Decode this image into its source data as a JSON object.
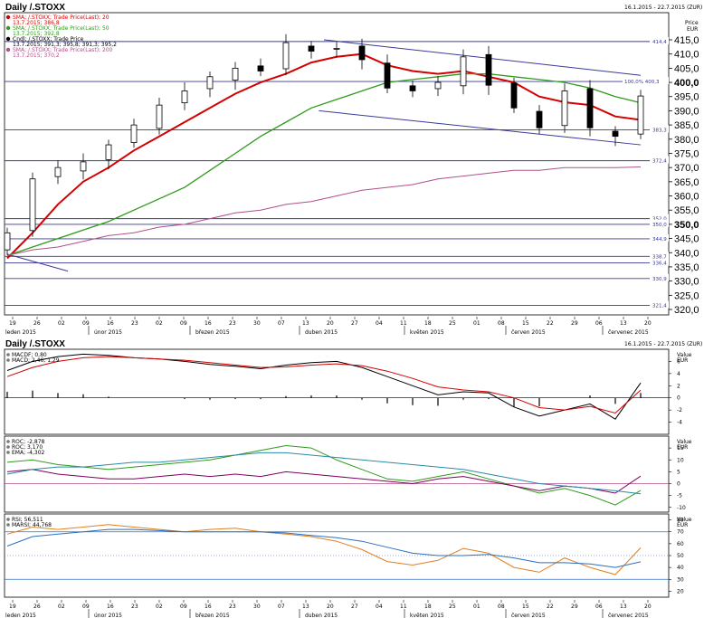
{
  "header": {
    "title": "Daily /.STOXX",
    "range": "16.1.2015 - 22.7.2015 (ZUR)",
    "price_label": "Price",
    "currency": "EUR",
    "subtitle": "Daily /.STOXX",
    "sub_range": "16.1.2015 - 22.7.2015 (ZUR)"
  },
  "legend": [
    {
      "text": "SMA; /.STOXX; Trade Price(Last); 20",
      "sub": "13.7.2015; 386,8",
      "color": "#d40000"
    },
    {
      "text": "SMA; /.STOXX; Trade Price(Last); 50",
      "sub": "13.7.2015; 392,8",
      "color": "#2f9a1c"
    },
    {
      "text": "Cndl; /.STOXX; Trade Price",
      "sub": "13.7.2015; 391,3; 395,8; 391,3; 395,2",
      "color": "#000000"
    },
    {
      "text": "SMA; /.STOXX; Trade Price(Last); 200",
      "sub": "13.7.2015; 370,2",
      "color": "#b0508a"
    }
  ],
  "price_axis": {
    "ticks": [
      "415,0",
      "410,0",
      "405,0",
      "400,0",
      "395,0",
      "390,0",
      "385,0",
      "380,0",
      "375,0",
      "370,0",
      "365,0",
      "360,0",
      "355,0",
      "350,0",
      "345,0",
      "340,0",
      "335,0",
      "330,0",
      "325,0",
      "320,0"
    ],
    "bold_ticks": [
      "400,0",
      "350,0"
    ]
  },
  "hlines": [
    {
      "label": "414,4",
      "value": 414.4
    },
    {
      "label": "100,0% 400,3",
      "value": 400.3
    },
    {
      "label": "383,3",
      "value": 383.3
    },
    {
      "label": "372,4",
      "value": 372.4
    },
    {
      "label": "352,0",
      "value": 352.0
    },
    {
      "label": "350,0",
      "value": 350.0
    },
    {
      "label": "344,9",
      "value": 344.9
    },
    {
      "label": "338,7",
      "value": 338.7
    },
    {
      "label": "336,4",
      "value": 336.4
    },
    {
      "label": "330,9",
      "value": 330.9
    },
    {
      "label": "321,4",
      "value": 321.4
    }
  ],
  "x_axis": {
    "day_ticks": [
      "19",
      "26",
      "02",
      "09",
      "16",
      "23",
      "02",
      "09",
      "16",
      "23",
      "30",
      "07",
      "13",
      "20",
      "27",
      "04",
      "11",
      "18",
      "25",
      "01",
      "08",
      "15",
      "22",
      "29",
      "06",
      "13",
      "20"
    ],
    "months": [
      "leden 2015",
      "únor 2015",
      "březen 2015",
      "duben 2015",
      "květen 2015",
      "červen 2015",
      "červenec 2015"
    ]
  },
  "macd_panel": {
    "legend": [
      "MACDF; 0,80",
      "MACD; 2,46; 1,29"
    ],
    "value_label": "Value",
    "currency": "EUR",
    "ticks": [
      "6",
      "4",
      "2",
      "0",
      "-2",
      "-4"
    ]
  },
  "roc_panel": {
    "legend": [
      "ROC; -2,878",
      "ROC; 3,170",
      "EMA; -4,302"
    ],
    "value_label": "Value",
    "currency": "EUR",
    "ticks": [
      "15",
      "10",
      "5",
      "0",
      "-5",
      "-10"
    ]
  },
  "rsi_panel": {
    "legend": [
      "RSI; 56,511",
      "MARSI; 44,768"
    ],
    "value_label": "Value",
    "currency": "EUR",
    "ticks": [
      "80",
      "70",
      "60",
      "50",
      "40",
      "30",
      "20"
    ]
  },
  "colors": {
    "sma20": "#d40000",
    "sma50": "#2f9a1c",
    "sma200": "#b0508a",
    "hline": "#3a3a9a",
    "trend": "#3a3a9a",
    "macd": "#000000",
    "signal": "#d40000",
    "roc1": "#2f9a1c",
    "roc2": "#800060",
    "ema": "#2a8aa8",
    "rsi": "#e08020",
    "marsi": "#2a70c0"
  },
  "chart_data": [
    {
      "type": "line",
      "title": "Daily /.STOXX",
      "ylabel": "Price EUR",
      "ylim": [
        320,
        417
      ],
      "grid": false,
      "x": [
        "19.1",
        "26.1",
        "02.2",
        "09.2",
        "16.2",
        "23.2",
        "02.3",
        "09.3",
        "16.3",
        "23.3",
        "30.3",
        "07.4",
        "13.4",
        "20.4",
        "27.4",
        "04.5",
        "11.5",
        "18.5",
        "25.5",
        "01.6",
        "08.6",
        "15.6",
        "22.6",
        "29.6",
        "06.7",
        "13.7"
      ],
      "series": [
        {
          "name": "Cndl; /.STOXX; Trade Price",
          "values": [
            347,
            366,
            370,
            372,
            378,
            385,
            392,
            397,
            402,
            405,
            404,
            414,
            411,
            412,
            408,
            398,
            397,
            400,
            409,
            399,
            391,
            384,
            397,
            384,
            381,
            395.2
          ]
        },
        {
          "name": "SMA 20",
          "values": [
            338,
            347,
            357,
            365,
            370,
            376,
            381,
            386,
            391,
            396,
            400,
            403,
            407,
            409,
            410,
            406,
            404,
            403,
            404,
            402,
            400,
            395,
            393,
            392,
            388,
            386.8
          ]
        },
        {
          "name": "SMA 50",
          "values": [
            339,
            342,
            345,
            348,
            351,
            355,
            359,
            363,
            369,
            375,
            381,
            386,
            391,
            394,
            397,
            400,
            401,
            402,
            403,
            403,
            402,
            401,
            400,
            398,
            395,
            392.8
          ]
        },
        {
          "name": "SMA 200",
          "values": [
            339,
            341,
            342,
            344,
            346,
            347,
            349,
            350,
            352,
            354,
            355,
            357,
            358,
            360,
            362,
            363,
            364,
            366,
            367,
            368,
            369,
            369,
            370,
            370,
            370,
            370.2
          ]
        }
      ]
    },
    {
      "type": "line",
      "title": "Daily /.STOXX",
      "ylabel": "Value EUR",
      "x": [
        "19.1",
        "26.1",
        "02.2",
        "09.2",
        "16.2",
        "23.2",
        "02.3",
        "09.3",
        "16.3",
        "23.3",
        "30.3",
        "07.4",
        "13.4",
        "20.4",
        "27.4",
        "04.5",
        "11.5",
        "18.5",
        "25.5",
        "01.6",
        "08.6",
        "15.6",
        "22.6",
        "29.6",
        "06.7",
        "13.7"
      ],
      "series": [
        {
          "name": "MACD",
          "values": [
            4.5,
            6.0,
            6.8,
            7.2,
            7.0,
            6.6,
            6.4,
            6.0,
            5.5,
            5.2,
            4.8,
            5.4,
            5.8,
            6.0,
            5.0,
            3.5,
            2.0,
            0.5,
            1.0,
            0.8,
            -1.5,
            -3.0,
            -2.0,
            -1.0,
            -3.5,
            2.46
          ]
        },
        {
          "name": "Signal",
          "values": [
            3.5,
            5.0,
            6.0,
            6.6,
            6.8,
            6.6,
            6.4,
            6.2,
            5.8,
            5.4,
            5.0,
            5.1,
            5.4,
            5.6,
            5.3,
            4.4,
            3.2,
            1.8,
            1.3,
            1.0,
            0.0,
            -1.6,
            -2.0,
            -1.4,
            -2.5,
            1.29
          ]
        },
        {
          "name": "MACDF",
          "values": [
            1.0,
            1.2,
            0.8,
            0.6,
            0.2,
            0.0,
            0.0,
            -0.2,
            -0.3,
            -0.2,
            -0.2,
            0.3,
            0.4,
            0.4,
            -0.3,
            -0.9,
            -1.2,
            -1.3,
            -0.3,
            -0.2,
            -1.5,
            -1.4,
            0.0,
            0.4,
            -1.0,
            0.8
          ]
        }
      ]
    },
    {
      "type": "line",
      "x": [
        "19.1",
        "26.1",
        "02.2",
        "09.2",
        "16.2",
        "23.2",
        "02.3",
        "09.3",
        "16.3",
        "23.3",
        "30.3",
        "07.4",
        "13.4",
        "20.4",
        "27.4",
        "04.5",
        "11.5",
        "18.5",
        "25.5",
        "01.6",
        "08.6",
        "15.6",
        "22.6",
        "29.6",
        "06.7",
        "13.7"
      ],
      "series": [
        {
          "name": "ROC; -2,878",
          "values": [
            9,
            10,
            8,
            7,
            6,
            7,
            8,
            9,
            10,
            12,
            14,
            16,
            15,
            10,
            6,
            2,
            1,
            3,
            5,
            2,
            -1,
            -4,
            -2,
            -5,
            -9,
            -2.878
          ]
        },
        {
          "name": "ROC; 3,170",
          "values": [
            5,
            6,
            4,
            3,
            2,
            2,
            3,
            4,
            3,
            4,
            3,
            5,
            4,
            3,
            2,
            1,
            0,
            2,
            3,
            1,
            -1,
            -3,
            -1,
            -2,
            -4,
            3.17
          ]
        },
        {
          "name": "EMA; -4,302",
          "values": [
            4,
            6,
            7,
            7,
            8,
            9,
            9,
            10,
            11,
            12,
            13,
            13,
            12,
            11,
            10,
            9,
            8,
            7,
            6,
            4,
            2,
            0,
            -1,
            -2,
            -3,
            -4.302
          ]
        }
      ]
    },
    {
      "type": "line",
      "x": [
        "19.1",
        "26.1",
        "02.2",
        "09.2",
        "16.2",
        "23.2",
        "02.3",
        "09.3",
        "16.3",
        "23.3",
        "30.3",
        "07.4",
        "13.4",
        "20.4",
        "27.4",
        "04.5",
        "11.5",
        "18.5",
        "25.5",
        "01.6",
        "08.6",
        "15.6",
        "22.6",
        "29.6",
        "06.7",
        "13.7"
      ],
      "series": [
        {
          "name": "RSI; 56,511",
          "values": [
            68,
            74,
            72,
            74,
            76,
            74,
            72,
            70,
            72,
            73,
            70,
            68,
            66,
            62,
            55,
            45,
            42,
            46,
            56,
            52,
            40,
            36,
            48,
            40,
            34,
            56.511
          ]
        },
        {
          "name": "MARSI; 44,768",
          "values": [
            58,
            66,
            68,
            70,
            72,
            72,
            71,
            70,
            70,
            70,
            70,
            69,
            67,
            65,
            62,
            57,
            52,
            50,
            50,
            51,
            48,
            44,
            44,
            43,
            40,
            44.768
          ]
        }
      ]
    }
  ]
}
